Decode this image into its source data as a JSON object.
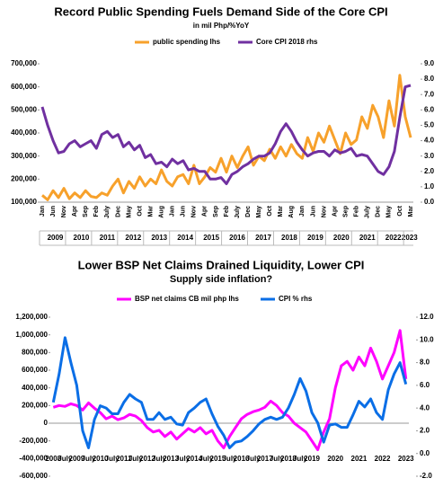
{
  "chart_data": [
    {
      "type": "line",
      "title": "Record Public Spending Fuels Demand Side of the Core CPI",
      "subtitle": "in mil Php/%YoY",
      "categories": [
        "Jan",
        null,
        "Jun",
        null,
        "Nov",
        null,
        "Apr",
        null,
        "Sep",
        null,
        "Feb",
        null,
        "July",
        null,
        "Dec",
        null,
        "May",
        null,
        "Oct",
        null,
        "Mar",
        null,
        "Aug",
        null,
        "Jan",
        null,
        "Jun",
        null,
        "Nov",
        null,
        "Apr",
        null,
        "Sep",
        null,
        "Feb",
        null,
        "July",
        null,
        "Dec",
        null,
        "May",
        null,
        "Oct",
        null,
        "Mar",
        null,
        "Aug",
        null,
        "Jan",
        null,
        "Jun",
        null,
        "Nov",
        null,
        "Apr",
        null,
        "Sep",
        null,
        "Feb",
        null,
        "July",
        null,
        "Dec",
        null,
        "May",
        null,
        "Oct",
        null,
        "Mar"
      ],
      "x_year_labels": [
        "2009",
        "2010",
        "2011",
        "2012",
        "2013",
        "2014",
        "2015",
        "2016",
        "2017",
        "2018",
        "2019",
        "2020",
        "2021",
        "2022",
        "2023"
      ],
      "series": [
        {
          "name": "public spending lhs",
          "color": "#f7a12b",
          "axis": "y",
          "values": [
            130000,
            110000,
            150000,
            120000,
            160000,
            115000,
            140000,
            120000,
            150000,
            125000,
            120000,
            140000,
            130000,
            170000,
            200000,
            140000,
            190000,
            160000,
            210000,
            170000,
            200000,
            180000,
            240000,
            190000,
            170000,
            210000,
            220000,
            180000,
            260000,
            180000,
            210000,
            250000,
            230000,
            290000,
            230000,
            300000,
            250000,
            300000,
            340000,
            260000,
            300000,
            280000,
            330000,
            290000,
            340000,
            300000,
            350000,
            310000,
            290000,
            380000,
            320000,
            400000,
            360000,
            430000,
            370000,
            310000,
            400000,
            350000,
            370000,
            470000,
            420000,
            520000,
            470000,
            380000,
            540000,
            430000,
            650000,
            470000,
            380000
          ]
        },
        {
          "name": "Core CPI 2018 rhs",
          "color": "#7030a0",
          "axis": "y2",
          "values": [
            6.2,
            5.0,
            4.0,
            3.2,
            3.3,
            3.8,
            4.0,
            3.6,
            3.8,
            4.0,
            3.5,
            4.4,
            4.6,
            4.2,
            4.4,
            3.6,
            3.9,
            3.4,
            3.7,
            2.9,
            3.1,
            2.5,
            2.6,
            2.3,
            2.8,
            2.5,
            2.7,
            2.1,
            2.2,
            2.0,
            2.0,
            1.5,
            1.5,
            1.6,
            1.2,
            1.8,
            2.0,
            2.3,
            2.5,
            2.8,
            3.0,
            3.0,
            3.2,
            3.8,
            4.6,
            5.1,
            4.6,
            3.9,
            3.4,
            3.0,
            3.2,
            3.3,
            3.3,
            3.0,
            3.4,
            3.2,
            3.3,
            3.5,
            3.0,
            3.1,
            3.0,
            2.5,
            2.0,
            1.8,
            2.3,
            3.3,
            5.5,
            7.5,
            7.6
          ]
        }
      ],
      "ylim": [
        100000,
        700000
      ],
      "yticks": [
        {
          "value": 100000,
          "label": "100,000"
        },
        {
          "value": 200000,
          "label": "200,000"
        },
        {
          "value": 300000,
          "label": "300,000"
        },
        {
          "value": 400000,
          "label": "400,000"
        },
        {
          "value": 500000,
          "label": "500,000"
        },
        {
          "value": 600000,
          "label": "600,000"
        },
        {
          "value": 700000,
          "label": "700,000"
        }
      ],
      "y2lim": [
        0,
        9
      ],
      "y2ticks": [
        {
          "value": 0,
          "label": "0.0"
        },
        {
          "value": 1,
          "label": "1.0"
        },
        {
          "value": 2,
          "label": "2.0"
        },
        {
          "value": 3,
          "label": "3.0"
        },
        {
          "value": 4,
          "label": "4.0"
        },
        {
          "value": 5,
          "label": "5.0"
        },
        {
          "value": 6,
          "label": "6.0"
        },
        {
          "value": 7,
          "label": "7.0"
        },
        {
          "value": 8,
          "label": "8.0"
        },
        {
          "value": 9,
          "label": "9.0"
        }
      ]
    },
    {
      "type": "line",
      "title": "Lower BSP Net Claims Drained Liquidity, Lower CPI",
      "subtitle": "Supply side inflation?",
      "categories": [
        "2008",
        null,
        "July",
        null,
        "2009",
        null,
        "July",
        null,
        "2010",
        null,
        "July",
        null,
        "2011",
        null,
        "July",
        null,
        "2012",
        null,
        "July",
        null,
        "2013",
        null,
        "July",
        null,
        "2014",
        null,
        "July",
        null,
        "2015",
        null,
        "July",
        null,
        "2016",
        null,
        "July",
        null,
        "2017",
        null,
        "July",
        null,
        "2018",
        null,
        "July",
        null,
        "2019",
        null,
        null,
        null,
        "2020",
        null,
        null,
        null,
        "2021",
        null,
        null,
        null,
        "2022",
        null,
        null,
        null,
        "2023"
      ],
      "series": [
        {
          "name": "BSP net claims CB mil php lhs",
          "color": "#ff00ff",
          "axis": "y",
          "values": [
            180000,
            200000,
            190000,
            220000,
            200000,
            150000,
            230000,
            170000,
            120000,
            50000,
            80000,
            40000,
            60000,
            100000,
            80000,
            30000,
            -50000,
            -100000,
            -80000,
            -150000,
            -100000,
            -180000,
            -120000,
            -60000,
            -100000,
            -50000,
            -120000,
            -80000,
            -200000,
            -280000,
            -150000,
            -50000,
            50000,
            100000,
            130000,
            150000,
            180000,
            250000,
            200000,
            120000,
            80000,
            0,
            -50000,
            -100000,
            -200000,
            -300000,
            -100000,
            50000,
            400000,
            650000,
            700000,
            600000,
            750000,
            650000,
            850000,
            700000,
            500000,
            650000,
            800000,
            1050000,
            500000
          ]
        },
        {
          "name": "CPI % rhs",
          "color": "#0a6ee6",
          "axis": "y2",
          "values": [
            4.5,
            7.0,
            10.2,
            8.0,
            6.0,
            2.0,
            0.5,
            3.0,
            4.2,
            4.0,
            3.5,
            3.5,
            4.5,
            5.2,
            4.8,
            4.5,
            3.0,
            3.0,
            3.6,
            3.0,
            3.2,
            2.6,
            2.5,
            3.6,
            4.0,
            4.5,
            4.8,
            3.5,
            2.4,
            1.6,
            0.5,
            1.0,
            1.1,
            1.5,
            2.0,
            2.6,
            3.0,
            3.2,
            3.0,
            3.2,
            4.0,
            5.2,
            6.6,
            5.5,
            3.6,
            2.7,
            1.0,
            2.5,
            2.6,
            2.3,
            2.3,
            3.4,
            4.6,
            4.1,
            4.8,
            3.6,
            3.0,
            5.6,
            7.0,
            8.0,
            6.1
          ]
        }
      ],
      "ylim": [
        -600000,
        1200000
      ],
      "yticks": [
        {
          "value": -600000,
          "label": "-600,000"
        },
        {
          "value": -400000,
          "label": "-400,000"
        },
        {
          "value": -200000,
          "label": "-200,000"
        },
        0,
        {
          "value": 200000,
          "label": "200,000"
        },
        {
          "value": 400000,
          "label": "400,000"
        },
        {
          "value": 600000,
          "label": "600,000"
        },
        {
          "value": 800000,
          "label": "800,000"
        },
        {
          "value": 1000000,
          "label": "1,000,000"
        },
        {
          "value": 1200000,
          "label": "1,200,000"
        }
      ],
      "y2lim": [
        -2,
        12
      ],
      "y2ticks": [
        {
          "value": -2,
          "label": "-2.0"
        },
        {
          "value": 0,
          "label": "0.0"
        },
        {
          "value": 2,
          "label": "2.0"
        },
        {
          "value": 4,
          "label": "4.0"
        },
        {
          "value": 6,
          "label": "6.0"
        },
        {
          "value": 8,
          "label": "8.0"
        },
        {
          "value": 10,
          "label": "10.0"
        },
        {
          "value": 12,
          "label": "12.0"
        }
      ]
    }
  ]
}
